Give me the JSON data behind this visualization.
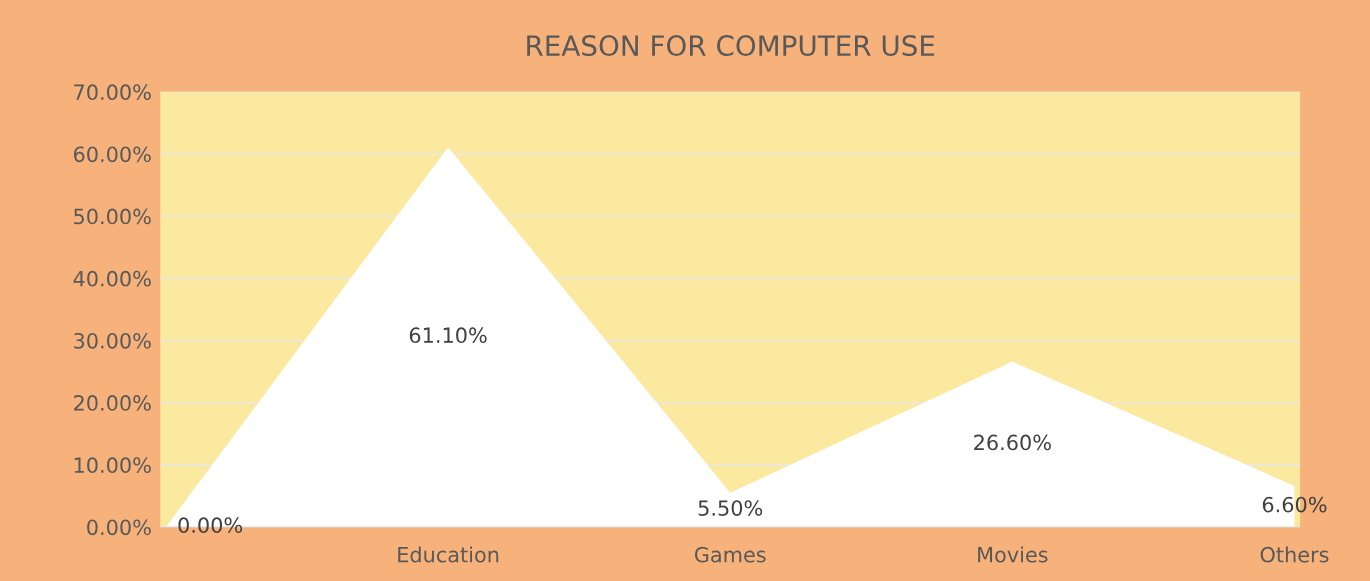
{
  "chart_data": {
    "type": "area",
    "title": "REASON FOR COMPUTER USE",
    "categories": [
      null,
      "Education",
      "Games",
      "Movies",
      "Others"
    ],
    "series": [
      {
        "color": "#ffffff",
        "values": [
          0,
          61.1,
          5.5,
          26.6,
          6.6
        ]
      }
    ],
    "value_labels": [
      "0.00%",
      "61.10%",
      "5.50%",
      "26.60%",
      "6.60%"
    ],
    "ylim": [
      0,
      70
    ],
    "yticks": [
      {
        "value": 0,
        "label": "0.00%"
      },
      {
        "value": 10,
        "label": "10.00%"
      },
      {
        "value": 20,
        "label": "20.00%"
      },
      {
        "value": 30,
        "label": "30.00%"
      },
      {
        "value": 40,
        "label": "40.00%"
      },
      {
        "value": 50,
        "label": "50.00%"
      },
      {
        "value": 60,
        "label": "60.00%"
      },
      {
        "value": 70,
        "label": "70.00%"
      }
    ],
    "grid": "y",
    "legend": false
  }
}
